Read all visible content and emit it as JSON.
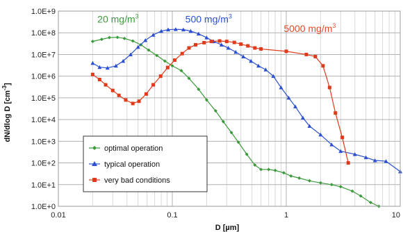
{
  "chart_data": {
    "type": "line",
    "xscale": "log",
    "yscale": "log",
    "xlim": [
      0.01,
      10
    ],
    "ylim": [
      1,
      1000000000
    ],
    "x_ticks": [
      0.01,
      0.1,
      1,
      10
    ],
    "x_tick_labels": [
      "0.01",
      "0.1",
      "1",
      "10"
    ],
    "y_ticks": [
      1,
      10,
      100,
      1000,
      10000,
      100000,
      1000000,
      10000000,
      100000000,
      1000000000
    ],
    "y_tick_labels": [
      "1.0E+0",
      "1.0E+1",
      "1.0E+2",
      "1.0E+3",
      "1.0E+4",
      "1.0E+5",
      "1.0E+6",
      "1.0E+7",
      "1.0E+8",
      "1.0E+9"
    ],
    "xlabel": "D [µm]",
    "ylabel_main": "dN/dlog D [cm",
    "ylabel_sup": "-3",
    "ylabel_end": "]",
    "grid": true,
    "legend_position": "bottom-left",
    "annotations": [
      {
        "text": "20 mg/m",
        "sup": "3",
        "color": "#3a9a3a",
        "x": 0.022,
        "y": 300000000
      },
      {
        "text": "500 mg/m",
        "sup": "3",
        "color": "#2a4fd0",
        "x": 0.13,
        "y": 300000000
      },
      {
        "text": "5000 mg/m",
        "sup": "3",
        "color": "#e24a2a",
        "x": 0.95,
        "y": 110000000
      }
    ],
    "series": [
      {
        "name": "optimal operation",
        "color": "#3a9a3a",
        "marker": "diamond",
        "x": [
          0.02,
          0.024,
          0.028,
          0.033,
          0.038,
          0.045,
          0.053,
          0.062,
          0.073,
          0.086,
          0.1,
          0.12,
          0.14,
          0.17,
          0.2,
          0.24,
          0.28,
          0.33,
          0.38,
          0.45,
          0.53,
          0.6,
          0.7,
          0.8,
          0.95,
          1.1,
          1.3,
          1.6,
          2.0,
          2.5,
          3.0,
          3.8,
          4.5,
          5.5,
          6.5
        ],
        "y": [
          40000000,
          50000000,
          60000000,
          62000000,
          55000000,
          42000000,
          28000000,
          16000000,
          9000000,
          5000000,
          3000000,
          1800000,
          800000,
          250000,
          80000,
          25000,
          8000,
          2500,
          900,
          250,
          80,
          50,
          50,
          45,
          35,
          25,
          20,
          15,
          12,
          10,
          8,
          5,
          3,
          1.5,
          1
        ]
      },
      {
        "name": "typical operation",
        "color": "#2a4fd0",
        "marker": "triangle",
        "x": [
          0.02,
          0.023,
          0.027,
          0.032,
          0.037,
          0.043,
          0.05,
          0.058,
          0.068,
          0.08,
          0.092,
          0.107,
          0.125,
          0.145,
          0.17,
          0.2,
          0.23,
          0.27,
          0.31,
          0.36,
          0.42,
          0.49,
          0.57,
          0.66,
          0.77,
          0.9,
          1.05,
          1.2,
          1.4,
          1.6,
          2.0,
          2.5,
          3.0,
          4.0,
          5.0,
          6.0,
          7.5,
          10
        ],
        "y": [
          4000000,
          2600000,
          2400000,
          3000000,
          5000000,
          10000000,
          22000000,
          45000000,
          80000000,
          120000000,
          140000000,
          145000000,
          140000000,
          120000000,
          90000000,
          60000000,
          40000000,
          28000000,
          20000000,
          13000000,
          8000000,
          5000000,
          3000000,
          2000000,
          1000000,
          300000,
          100000,
          40000,
          12000,
          5000,
          2000,
          700,
          350,
          250,
          180,
          130,
          120,
          40
        ]
      },
      {
        "name": "very bad conditions",
        "color": "#e03a1a",
        "marker": "square",
        "x": [
          0.02,
          0.023,
          0.026,
          0.03,
          0.034,
          0.039,
          0.045,
          0.051,
          0.059,
          0.068,
          0.079,
          0.091,
          0.105,
          0.122,
          0.14,
          0.16,
          0.19,
          0.22,
          0.26,
          0.3,
          0.35,
          0.4,
          0.46,
          0.53,
          0.6,
          1.0,
          1.5,
          1.8,
          2.1,
          2.4,
          2.7,
          3.1,
          3.5
        ],
        "y": [
          1200000,
          700000,
          400000,
          220000,
          130000,
          80000,
          55000,
          70000,
          150000,
          400000,
          1000000,
          2500000,
          5500000,
          11000000,
          20000000,
          28000000,
          35000000,
          40000000,
          42000000,
          40000000,
          36000000,
          30000000,
          25000000,
          20000000,
          18000000,
          14000000,
          10000000,
          8000000,
          3000000,
          300000,
          20000,
          1500,
          100
        ]
      }
    ]
  }
}
